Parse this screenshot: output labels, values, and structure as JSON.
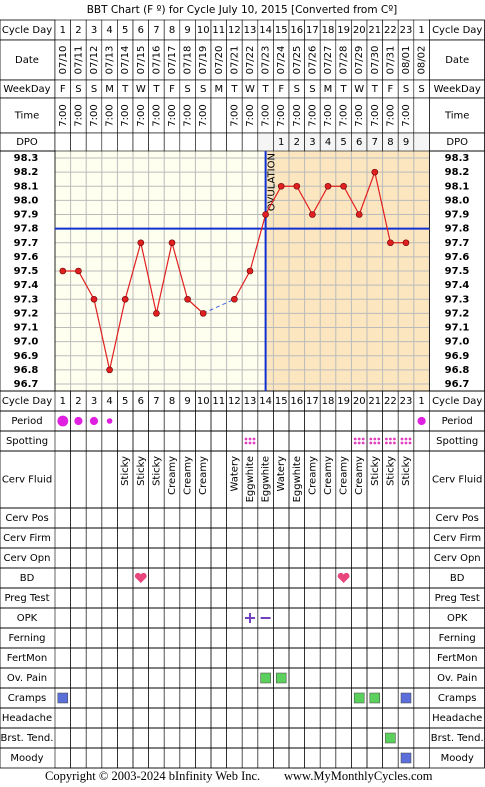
{
  "title": "BBT Chart (F º) for Cycle July 10, 2015  [Converted from Cº]",
  "labels": {
    "cycle_day": "Cycle Day",
    "date": "Date",
    "weekday": "WeekDay",
    "time": "Time",
    "dpo": "DPO"
  },
  "columns": {
    "cycle_day": [
      1,
      2,
      3,
      4,
      5,
      6,
      7,
      8,
      9,
      10,
      11,
      12,
      13,
      14,
      15,
      16,
      17,
      18,
      19,
      20,
      21,
      22,
      23,
      1
    ],
    "weekday": [
      "F",
      "S",
      "S",
      "M",
      "T",
      "W",
      "T",
      "F",
      "S",
      "S",
      "M",
      "T",
      "W",
      "T",
      "F",
      "S",
      "S",
      "M",
      "T",
      "W",
      "T",
      "F",
      "S",
      "S"
    ],
    "time": [
      "7:00",
      "7:00",
      "7:00",
      "7:00",
      "7:00",
      "7:00",
      "7:00",
      "7:00",
      "7:00",
      "7:00",
      null,
      "7:00",
      "7:00",
      "7:00",
      "7:00",
      "7:00",
      "7:00",
      "7:00",
      "7:00",
      "7:00",
      "7:00",
      "7:00",
      "7:00",
      null
    ],
    "dpo": [
      null,
      null,
      null,
      null,
      null,
      null,
      null,
      null,
      null,
      null,
      null,
      null,
      null,
      null,
      1,
      2,
      3,
      4,
      5,
      6,
      7,
      8,
      9,
      null
    ]
  },
  "chart_data": {
    "type": "line",
    "categories": [
      "07/10",
      "07/11",
      "07/12",
      "07/13",
      "07/14",
      "07/15",
      "07/16",
      "07/17",
      "07/18",
      "07/19",
      "07/20",
      "07/21",
      "07/22",
      "07/23",
      "07/24",
      "07/25",
      "07/26",
      "07/27",
      "07/28",
      "07/29",
      "07/30",
      "07/31",
      "08/01",
      "08/02"
    ],
    "values": [
      97.5,
      97.5,
      97.3,
      96.8,
      97.3,
      97.7,
      97.2,
      97.7,
      97.3,
      97.2,
      null,
      97.3,
      97.5,
      97.9,
      98.1,
      98.1,
      97.9,
      98.1,
      98.1,
      97.9,
      98.2,
      97.7,
      97.7,
      null
    ],
    "color": "#e02020",
    "ylim": [
      96.7,
      98.3
    ],
    "yticks": [
      96.7,
      96.8,
      96.9,
      {
        "value": 97,
        "label": "97.0"
      },
      97.1,
      97.2,
      97.3,
      97.4,
      97.5,
      97.6,
      97.7,
      97.8,
      97.9,
      {
        "value": 98,
        "label": "98.0"
      },
      98.1,
      98.2,
      98.3
    ],
    "coverline": 97.8,
    "ovulation_day": 14,
    "ovulation_label": "OVULATION"
  },
  "symptoms": [
    {
      "label": "Period",
      "marks": [
        {
          "date": "07/10",
          "shape": "dot",
          "size": 3,
          "color": "#e020e0"
        },
        {
          "date": "07/11",
          "shape": "dot",
          "size": 2,
          "color": "#e020e0"
        },
        {
          "date": "07/12",
          "shape": "dot",
          "size": 2,
          "color": "#e020e0"
        },
        {
          "date": "07/13",
          "shape": "dot",
          "size": 1,
          "color": "#e020e0"
        },
        {
          "date": "08/02",
          "shape": "dot",
          "size": 2,
          "color": "#e020e0"
        }
      ]
    },
    {
      "label": "Spotting",
      "marks": [
        {
          "date": "07/22",
          "shape": "dots",
          "color": "#e040c0"
        },
        {
          "date": "07/29",
          "shape": "dots",
          "color": "#e040c0"
        },
        {
          "date": "07/30",
          "shape": "dots",
          "color": "#e040c0"
        },
        {
          "date": "07/31",
          "shape": "dots",
          "color": "#e040c0"
        },
        {
          "date": "08/01",
          "shape": "dots",
          "color": "#e040c0"
        }
      ]
    },
    {
      "label": "Cerv Fluid",
      "texts": [
        null,
        null,
        null,
        null,
        "Sticky",
        "Sticky",
        "Sticky",
        "Creamy",
        "Creamy",
        "Creamy",
        null,
        "Watery",
        "Eggwhite",
        "Eggwhite",
        "Watery",
        "Eggwhite",
        "Creamy",
        "Creamy",
        "Creamy",
        "Creamy",
        "Sticky",
        "Sticky",
        "Sticky",
        null
      ]
    },
    {
      "label": "Cerv Pos",
      "marks": []
    },
    {
      "label": "Cerv Firm",
      "marks": []
    },
    {
      "label": "Cerv Opn",
      "marks": []
    },
    {
      "label": "BD",
      "marks": [
        {
          "date": "07/15",
          "shape": "heart",
          "color": "#e8467c"
        },
        {
          "date": "07/28",
          "shape": "heart",
          "color": "#e8467c"
        }
      ]
    },
    {
      "label": "Preg Test",
      "marks": []
    },
    {
      "label": "OPK",
      "marks": [
        {
          "date": "07/22",
          "shape": "plus",
          "color": "#7040c0"
        },
        {
          "date": "07/23",
          "shape": "minus",
          "color": "#7040c0"
        }
      ]
    },
    {
      "label": "Ferning",
      "marks": []
    },
    {
      "label": "FertMon",
      "marks": []
    },
    {
      "label": "Ov. Pain",
      "marks": [
        {
          "date": "07/23",
          "shape": "square",
          "color": "#5cd05c"
        },
        {
          "date": "07/24",
          "shape": "square",
          "color": "#5cd05c"
        }
      ]
    },
    {
      "label": "Cramps",
      "marks": [
        {
          "date": "07/10",
          "shape": "square",
          "color": "#5b6fd8"
        },
        {
          "date": "07/29",
          "shape": "square",
          "color": "#5cd05c"
        },
        {
          "date": "07/30",
          "shape": "square",
          "color": "#5cd05c"
        },
        {
          "date": "08/01",
          "shape": "square",
          "color": "#5b6fd8"
        }
      ]
    },
    {
      "label": "Headache",
      "marks": []
    },
    {
      "label": "Brst. Tend.",
      "marks": [
        {
          "date": "07/31",
          "shape": "square",
          "color": "#5cd05c"
        }
      ]
    },
    {
      "label": "Moody",
      "marks": [
        {
          "date": "08/01",
          "shape": "square",
          "color": "#5b6fd8"
        }
      ]
    }
  ],
  "footer": {
    "copyright": "Copyright © 2003-2024 bInfinity Web Inc.",
    "site": "www.MyMonthlyCycles.com"
  }
}
